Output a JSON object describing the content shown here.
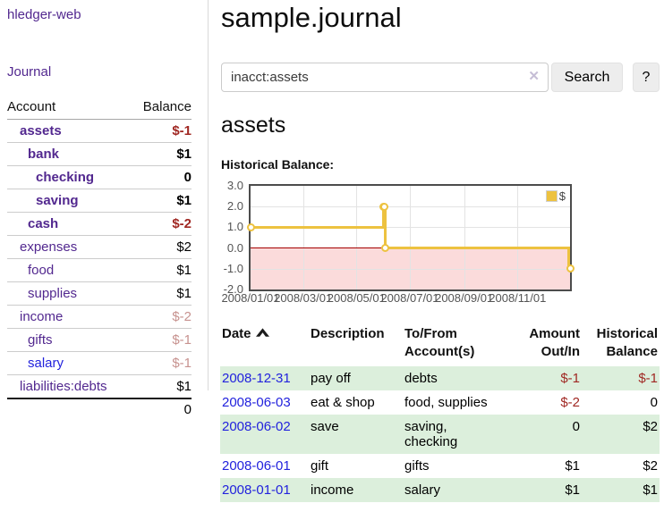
{
  "sidebar": {
    "brand": "hledger-web",
    "journal_link": "Journal",
    "headers": {
      "account": "Account",
      "balance": "Balance"
    },
    "accounts": [
      {
        "name": "assets",
        "balance": "$-1",
        "indent": 1,
        "emphasis": true,
        "name_color": "purple",
        "balance_color": "negative"
      },
      {
        "name": "bank",
        "balance": "$1",
        "indent": 2,
        "emphasis": true,
        "name_color": "purple",
        "balance_color": "normal"
      },
      {
        "name": "checking",
        "balance": "0",
        "indent": 3,
        "emphasis": true,
        "name_color": "purple",
        "balance_color": "normal"
      },
      {
        "name": "saving",
        "balance": "$1",
        "indent": 3,
        "emphasis": true,
        "name_color": "purple",
        "balance_color": "normal"
      },
      {
        "name": "cash",
        "balance": "$-2",
        "indent": 2,
        "emphasis": true,
        "name_color": "purple",
        "balance_color": "negative"
      },
      {
        "name": "expenses",
        "balance": "$2",
        "indent": 1,
        "emphasis": false,
        "name_color": "purple",
        "balance_color": "normal"
      },
      {
        "name": "food",
        "balance": "$1",
        "indent": 2,
        "emphasis": false,
        "name_color": "purple",
        "balance_color": "normal"
      },
      {
        "name": "supplies",
        "balance": "$1",
        "indent": 2,
        "emphasis": false,
        "name_color": "purple",
        "balance_color": "normal"
      },
      {
        "name": "income",
        "balance": "$-2",
        "indent": 1,
        "emphasis": false,
        "name_color": "purple",
        "balance_color": "negative-faded"
      },
      {
        "name": "gifts",
        "balance": "$-1",
        "indent": 2,
        "emphasis": false,
        "name_color": "purple",
        "balance_color": "negative-faded"
      },
      {
        "name": "salary",
        "balance": "$-1",
        "indent": 2,
        "emphasis": false,
        "name_color": "blue",
        "balance_color": "negative-faded"
      },
      {
        "name": "liabilities:debts",
        "balance": "$1",
        "indent": 1,
        "emphasis": false,
        "name_color": "purple",
        "balance_color": "normal"
      }
    ],
    "total": "0"
  },
  "main": {
    "title": "sample.journal",
    "search": {
      "value": "inacct:assets",
      "clear_glyph": "✕",
      "button_label": "Search",
      "help_label": "?"
    },
    "account_heading": "assets",
    "chart_label": "Historical Balance:"
  },
  "register": {
    "headers": {
      "date": "Date",
      "description": "Description",
      "accounts": "To/From Account(s)",
      "amount": "Amount Out/In",
      "balance": "Historical Balance"
    },
    "sort": "ascending",
    "rows": [
      {
        "date": "2008-12-31",
        "description": "pay off",
        "accounts": "debts",
        "amount": "$-1",
        "amount_negative": true,
        "balance": "$-1",
        "balance_negative": true
      },
      {
        "date": "2008-06-03",
        "description": "eat & shop",
        "accounts": "food, supplies",
        "amount": "$-2",
        "amount_negative": true,
        "balance": "0",
        "balance_negative": false
      },
      {
        "date": "2008-06-02",
        "description": "save",
        "accounts": "saving, checking",
        "amount": "0",
        "amount_negative": false,
        "balance": "$2",
        "balance_negative": false
      },
      {
        "date": "2008-06-01",
        "description": "gift",
        "accounts": "gifts",
        "amount": "$1",
        "amount_negative": false,
        "balance": "$2",
        "balance_negative": false
      },
      {
        "date": "2008-01-01",
        "description": "income",
        "accounts": "salary",
        "amount": "$1",
        "amount_negative": false,
        "balance": "$1",
        "balance_negative": false
      }
    ]
  },
  "chart_data": {
    "type": "line",
    "title": "Historical Balance:",
    "step": true,
    "series": [
      {
        "name": "$",
        "color": "#edc240",
        "points": [
          [
            "2008-01-01",
            1
          ],
          [
            "2008-06-01",
            2
          ],
          [
            "2008-06-02",
            2
          ],
          [
            "2008-06-03",
            0
          ],
          [
            "2008-12-31",
            -1
          ]
        ]
      }
    ],
    "x_ticks": [
      "2008/01/01",
      "2008/03/01",
      "2008/05/01",
      "2008/07/01",
      "2008/09/01",
      "2008/11/01"
    ],
    "y_ticks": [
      "3.0",
      "2.0",
      "1.0",
      "0.0",
      "-1.0",
      "-2.0"
    ],
    "ylim": [
      -2,
      3
    ],
    "xlim": [
      "2008-01-01",
      "2008-12-31"
    ],
    "grid": true,
    "legend": [
      "$"
    ],
    "legend_position": "top-right",
    "negative_region_color": "#fbdbdb",
    "zero_line_color": "#a40000"
  },
  "colors": {
    "brand_purple": "#52288f",
    "link_blue": "#2222dd",
    "negative_red": "#a02823",
    "negative_faded": "#c7928f",
    "row_highlight_green": "#dcefdc",
    "chart_line_gold": "#edc240",
    "chart_negative_region": "#fbdbdb",
    "chart_zero_line": "#a40000"
  }
}
